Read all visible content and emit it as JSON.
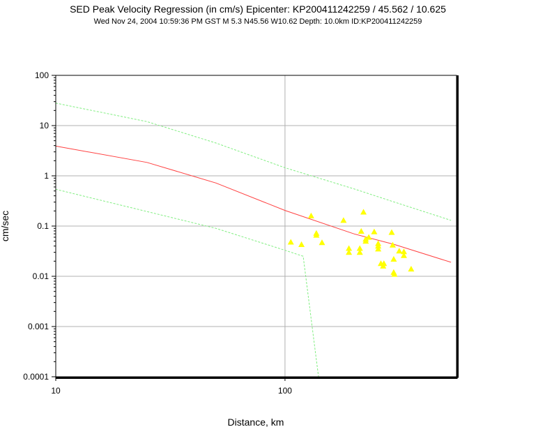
{
  "header": {
    "title": "SED Peak Velocity Regression (in cm/s) Epicenter: KP200411242259 / 45.562 / 10.625",
    "subtitle": "Wed Nov 24, 2004 10:59:36 PM GST   M 5.3    N45.56 W10.62   Depth: 10.0km   ID:KP200411242259"
  },
  "chart_data": {
    "type": "scatter",
    "title": "SED Peak Velocity Regression (in cm/s) Epicenter: KP200411242259 / 45.562 / 10.625",
    "xlabel": "Distance, km",
    "ylabel": "cm/sec",
    "x_scale": "log",
    "y_scale": "log",
    "xlim": [
      10,
      560
    ],
    "ylim": [
      0.0001,
      100
    ],
    "x_ticks": [
      10,
      100
    ],
    "x_tick_labels": [
      "10",
      "100"
    ],
    "y_ticks": [
      0.0001,
      0.001,
      0.01,
      0.1,
      1,
      10,
      100
    ],
    "y_tick_labels": [
      "0.0001",
      "0.001",
      "0.01",
      "0.1",
      "1",
      "10",
      "100"
    ],
    "grid": true,
    "colors": {
      "regression": "#ff4040",
      "bounds": "#80ee80",
      "points": "#ffff00",
      "grid": "#b0b0b0",
      "frame": "#000000"
    },
    "series": [
      {
        "kind": "line",
        "role": "regression",
        "points": [
          [
            10,
            3.9
          ],
          [
            25,
            1.85
          ],
          [
            50,
            0.72
          ],
          [
            100,
            0.205
          ],
          [
            200,
            0.07
          ],
          [
            300,
            0.043
          ],
          [
            530,
            0.019
          ]
        ]
      },
      {
        "kind": "line",
        "role": "upper-bound",
        "points": [
          [
            10,
            28
          ],
          [
            25,
            12
          ],
          [
            50,
            4.5
          ],
          [
            100,
            1.45
          ],
          [
            200,
            0.55
          ],
          [
            300,
            0.3
          ],
          [
            530,
            0.13
          ]
        ]
      },
      {
        "kind": "line",
        "role": "lower-bound",
        "points": [
          [
            10,
            0.54
          ],
          [
            50,
            0.09
          ],
          [
            100,
            0.033
          ],
          [
            120,
            0.025
          ],
          [
            140,
            0.0001
          ]
        ]
      },
      {
        "kind": "scatter",
        "role": "stations",
        "points": [
          [
            106,
            0.048
          ],
          [
            118,
            0.043
          ],
          [
            130,
            0.16
          ],
          [
            137,
            0.072
          ],
          [
            137,
            0.066
          ],
          [
            145,
            0.047
          ],
          [
            180,
            0.13
          ],
          [
            190,
            0.036
          ],
          [
            190,
            0.03
          ],
          [
            212,
            0.036
          ],
          [
            212,
            0.03
          ],
          [
            215,
            0.079
          ],
          [
            220,
            0.19
          ],
          [
            225,
            0.05
          ],
          [
            225,
            0.055
          ],
          [
            232,
            0.06
          ],
          [
            245,
            0.077
          ],
          [
            255,
            0.045
          ],
          [
            255,
            0.04
          ],
          [
            255,
            0.035
          ],
          [
            262,
            0.018
          ],
          [
            268,
            0.016
          ],
          [
            270,
            0.018
          ],
          [
            292,
            0.075
          ],
          [
            295,
            0.042
          ],
          [
            298,
            0.022
          ],
          [
            298,
            0.012
          ],
          [
            300,
            0.011
          ],
          [
            315,
            0.032
          ],
          [
            330,
            0.031
          ],
          [
            330,
            0.026
          ],
          [
            355,
            0.014
          ]
        ]
      }
    ]
  }
}
